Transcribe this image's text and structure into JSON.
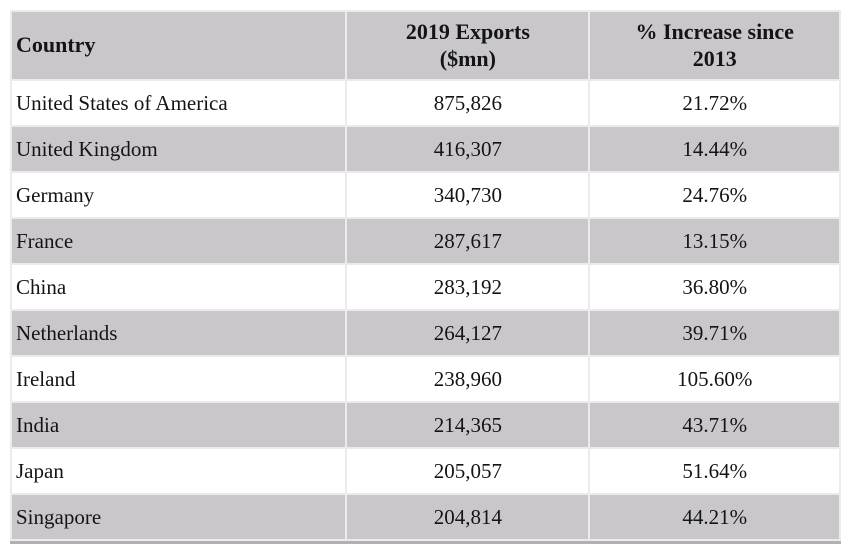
{
  "table": {
    "header": {
      "country": "Country",
      "exports_line1": "2019 Exports",
      "exports_line2": "($mn)",
      "increase_line1": "% Increase since",
      "increase_line2": "2013"
    },
    "rows": [
      {
        "country": "United States of America",
        "exports": "875,826",
        "increase": "21.72%"
      },
      {
        "country": "United Kingdom",
        "exports": "416,307",
        "increase": "14.44%"
      },
      {
        "country": "Germany",
        "exports": "340,730",
        "increase": "24.76%"
      },
      {
        "country": "France",
        "exports": "287,617",
        "increase": "13.15%"
      },
      {
        "country": "China",
        "exports": "283,192",
        "increase": "36.80%"
      },
      {
        "country": "Netherlands",
        "exports": "264,127",
        "increase": "39.71%"
      },
      {
        "country": "Ireland",
        "exports": "238,960",
        "increase": "105.60%"
      },
      {
        "country": "India",
        "exports": "214,365",
        "increase": "43.71%"
      },
      {
        "country": "Japan",
        "exports": "205,057",
        "increase": "51.64%"
      },
      {
        "country": "Singapore",
        "exports": "204,814",
        "increase": "44.21%"
      }
    ]
  },
  "colors": {
    "stripe_gray": "#cac7cb",
    "row_white": "#ffffff",
    "divider": "#eceaec",
    "bottom_rule": "#b3b0b4",
    "text": "#141414"
  },
  "chart_data": {
    "type": "table",
    "title": "2019 Exports by Country",
    "columns": [
      "Country",
      "2019 Exports ($mn)",
      "% Increase since 2013"
    ],
    "rows": [
      [
        "United States of America",
        875826,
        21.72
      ],
      [
        "United Kingdom",
        416307,
        14.44
      ],
      [
        "Germany",
        340730,
        24.76
      ],
      [
        "France",
        287617,
        13.15
      ],
      [
        "China",
        283192,
        36.8
      ],
      [
        "Netherlands",
        264127,
        39.71
      ],
      [
        "Ireland",
        238960,
        105.6
      ],
      [
        "India",
        214365,
        43.71
      ],
      [
        "Japan",
        205057,
        51.64
      ],
      [
        "Singapore",
        204814,
        44.21
      ]
    ],
    "layout": {
      "striped": true,
      "header_background": "#cac7cb",
      "stripe_background": "#cac7cb",
      "column_align": [
        "left",
        "center",
        "center"
      ]
    }
  }
}
